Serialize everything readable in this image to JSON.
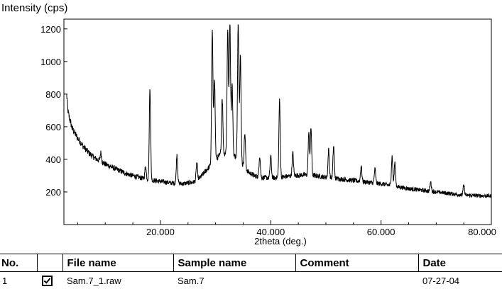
{
  "chart_data": {
    "type": "line",
    "ylabel": "Intensity (cps)",
    "xlabel": "2theta (deg.)",
    "xlim": [
      2.5,
      80.0
    ],
    "ylim": [
      0,
      1260
    ],
    "yticks": [
      200,
      400,
      600,
      800,
      1000,
      1200
    ],
    "ytick_labels": [
      "200",
      "400",
      "600",
      "800",
      "1000",
      "1200"
    ],
    "xticks": [
      20,
      40,
      60,
      80
    ],
    "xtick_labels": [
      "20.000",
      "40.000",
      "60.000",
      "80.000"
    ],
    "grid": false,
    "line_color": "#000000",
    "background": {
      "points": [
        [
          3,
          720
        ],
        [
          4,
          590
        ],
        [
          5,
          530
        ],
        [
          6,
          480
        ],
        [
          7,
          440
        ],
        [
          8,
          410
        ],
        [
          9,
          390
        ],
        [
          10,
          370
        ],
        [
          12,
          340
        ],
        [
          14,
          310
        ],
        [
          16,
          290
        ],
        [
          18,
          275
        ],
        [
          20,
          265
        ],
        [
          22,
          255
        ],
        [
          24,
          250
        ],
        [
          26,
          260
        ],
        [
          27,
          280
        ],
        [
          28,
          320
        ],
        [
          29,
          360
        ],
        [
          30,
          400
        ],
        [
          31,
          430
        ],
        [
          32,
          440
        ],
        [
          33,
          430
        ],
        [
          34,
          410
        ],
        [
          35,
          360
        ],
        [
          36,
          320
        ],
        [
          37,
          300
        ],
        [
          38,
          290
        ],
        [
          40,
          285
        ],
        [
          42,
          290
        ],
        [
          44,
          300
        ],
        [
          46,
          305
        ],
        [
          48,
          300
        ],
        [
          50,
          290
        ],
        [
          55,
          270
        ],
        [
          60,
          250
        ],
        [
          65,
          220
        ],
        [
          70,
          200
        ],
        [
          75,
          180
        ],
        [
          80,
          175
        ]
      ]
    },
    "peaks": [
      {
        "x": 3.0,
        "y": 790
      },
      {
        "x": 9.2,
        "y": 440
      },
      {
        "x": 17.3,
        "y": 360
      },
      {
        "x": 18.1,
        "y": 840
      },
      {
        "x": 23.0,
        "y": 430
      },
      {
        "x": 26.6,
        "y": 380
      },
      {
        "x": 29.4,
        "y": 1180
      },
      {
        "x": 29.8,
        "y": 900
      },
      {
        "x": 31.2,
        "y": 780
      },
      {
        "x": 32.2,
        "y": 1200
      },
      {
        "x": 32.6,
        "y": 1240
      },
      {
        "x": 33.0,
        "y": 860
      },
      {
        "x": 34.1,
        "y": 1250
      },
      {
        "x": 34.5,
        "y": 1040
      },
      {
        "x": 35.3,
        "y": 560
      },
      {
        "x": 38.0,
        "y": 420
      },
      {
        "x": 40.0,
        "y": 420
      },
      {
        "x": 41.6,
        "y": 760
      },
      {
        "x": 44.0,
        "y": 440
      },
      {
        "x": 46.9,
        "y": 560
      },
      {
        "x": 47.3,
        "y": 590
      },
      {
        "x": 50.5,
        "y": 460
      },
      {
        "x": 51.4,
        "y": 480
      },
      {
        "x": 56.4,
        "y": 360
      },
      {
        "x": 58.9,
        "y": 340
      },
      {
        "x": 62.0,
        "y": 420
      },
      {
        "x": 62.5,
        "y": 380
      },
      {
        "x": 69.0,
        "y": 260
      },
      {
        "x": 75.0,
        "y": 240
      }
    ]
  },
  "table": {
    "headers": [
      "No.",
      "",
      "File name",
      "Sample name",
      "Comment",
      "Date"
    ],
    "rows": [
      {
        "no": "1",
        "checked": true,
        "file_name": "Sam.7_1.raw",
        "sample_name": "Sam.7",
        "comment": "",
        "date": "07-27-04"
      }
    ]
  }
}
